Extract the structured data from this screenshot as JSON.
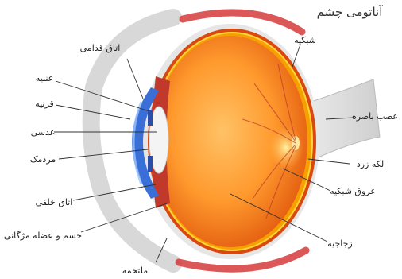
{
  "title": "آناتومی چشم",
  "labels": {
    "retina": "شبکیه",
    "optic_nerve": "عصب باصره",
    "macula": "لکه زرد",
    "retinal_vessels": "عروق شبکیه",
    "vitreous": "زجاجیه",
    "anterior_chamber": "اتاق قدامی",
    "iris": "عنبیه",
    "cornea": "قرنیه",
    "lens": "عدسی",
    "pupil": "مردمک",
    "posterior_chamber": "اتاق خلفی",
    "ciliary_body": "جسم و عضله مژگانی",
    "conjunctiva": "ملتحمه"
  },
  "colors": {
    "vitreous_center": "#ffb347",
    "vitreous_edge": "#e8590c",
    "sclera_red": "#c92a2a",
    "cornea_blue": "#3a6fd8"
  }
}
